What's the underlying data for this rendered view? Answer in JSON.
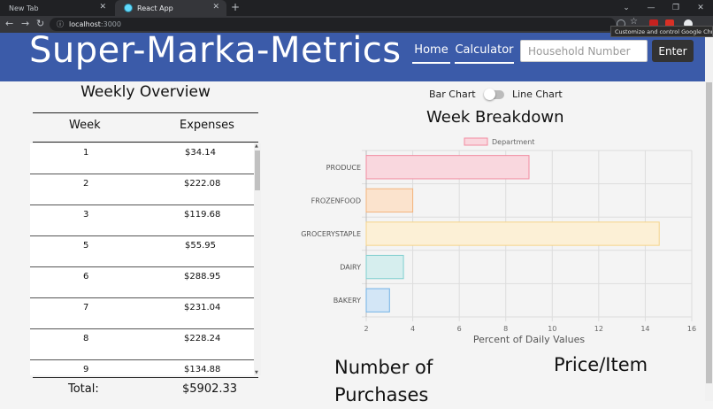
{
  "browser": {
    "tabs": [
      {
        "title": "New Tab",
        "active": false
      },
      {
        "title": "React App",
        "active": true
      }
    ],
    "url_host": "localhost",
    "url_port": ":3000",
    "tooltip": "Customize and control Google Chrome"
  },
  "header": {
    "brand": "Super-Marka-Metrics",
    "nav": {
      "home": "Home",
      "calculator": "Calculator"
    },
    "household_placeholder": "Household Number",
    "enter_label": "Enter",
    "bg_color": "#3b5ba9"
  },
  "overview": {
    "title": "Weekly Overview",
    "col_week": "Week",
    "col_expenses": "Expenses",
    "rows": [
      {
        "week": "1",
        "expense": "$34.14"
      },
      {
        "week": "2",
        "expense": "$222.08"
      },
      {
        "week": "3",
        "expense": "$119.68"
      },
      {
        "week": "5",
        "expense": "$55.95"
      },
      {
        "week": "6",
        "expense": "$288.95"
      },
      {
        "week": "7",
        "expense": "$231.04"
      },
      {
        "week": "8",
        "expense": "$228.24"
      },
      {
        "week": "9",
        "expense": "$134.88"
      }
    ],
    "total_label": "Total:",
    "total_value": "$5902.33"
  },
  "toggle": {
    "left_label": "Bar Chart",
    "right_label": "Line Chart",
    "state": "bar"
  },
  "breakdown": {
    "title": "Week Breakdown"
  },
  "chart_data": {
    "type": "bar",
    "orientation": "horizontal",
    "legend": "Department",
    "legend_position": "top",
    "categories": [
      "PRODUCE",
      "FROZENFOOD",
      "GROCERYSTAPLE",
      "DAIRY",
      "BAKERY"
    ],
    "values": [
      9,
      4,
      14.6,
      3.6,
      3
    ],
    "xlabel": "Percent of Daily Values",
    "ylabel": "",
    "xlim": [
      2,
      16
    ],
    "xticks": [
      2,
      4,
      6,
      8,
      10,
      12,
      14,
      16
    ],
    "grid": true,
    "colors": [
      {
        "fill": "#f9d7de",
        "stroke": "#f28ba0"
      },
      {
        "fill": "#fbe3cd",
        "stroke": "#f3b47d"
      },
      {
        "fill": "#fcf0d6",
        "stroke": "#f6d58a"
      },
      {
        "fill": "#d6eeee",
        "stroke": "#7fcfcf"
      },
      {
        "fill": "#d3e6f6",
        "stroke": "#73b3e6"
      }
    ]
  },
  "bottom": {
    "purchases": "Number of Purchases",
    "price_item": "Price/Item"
  }
}
